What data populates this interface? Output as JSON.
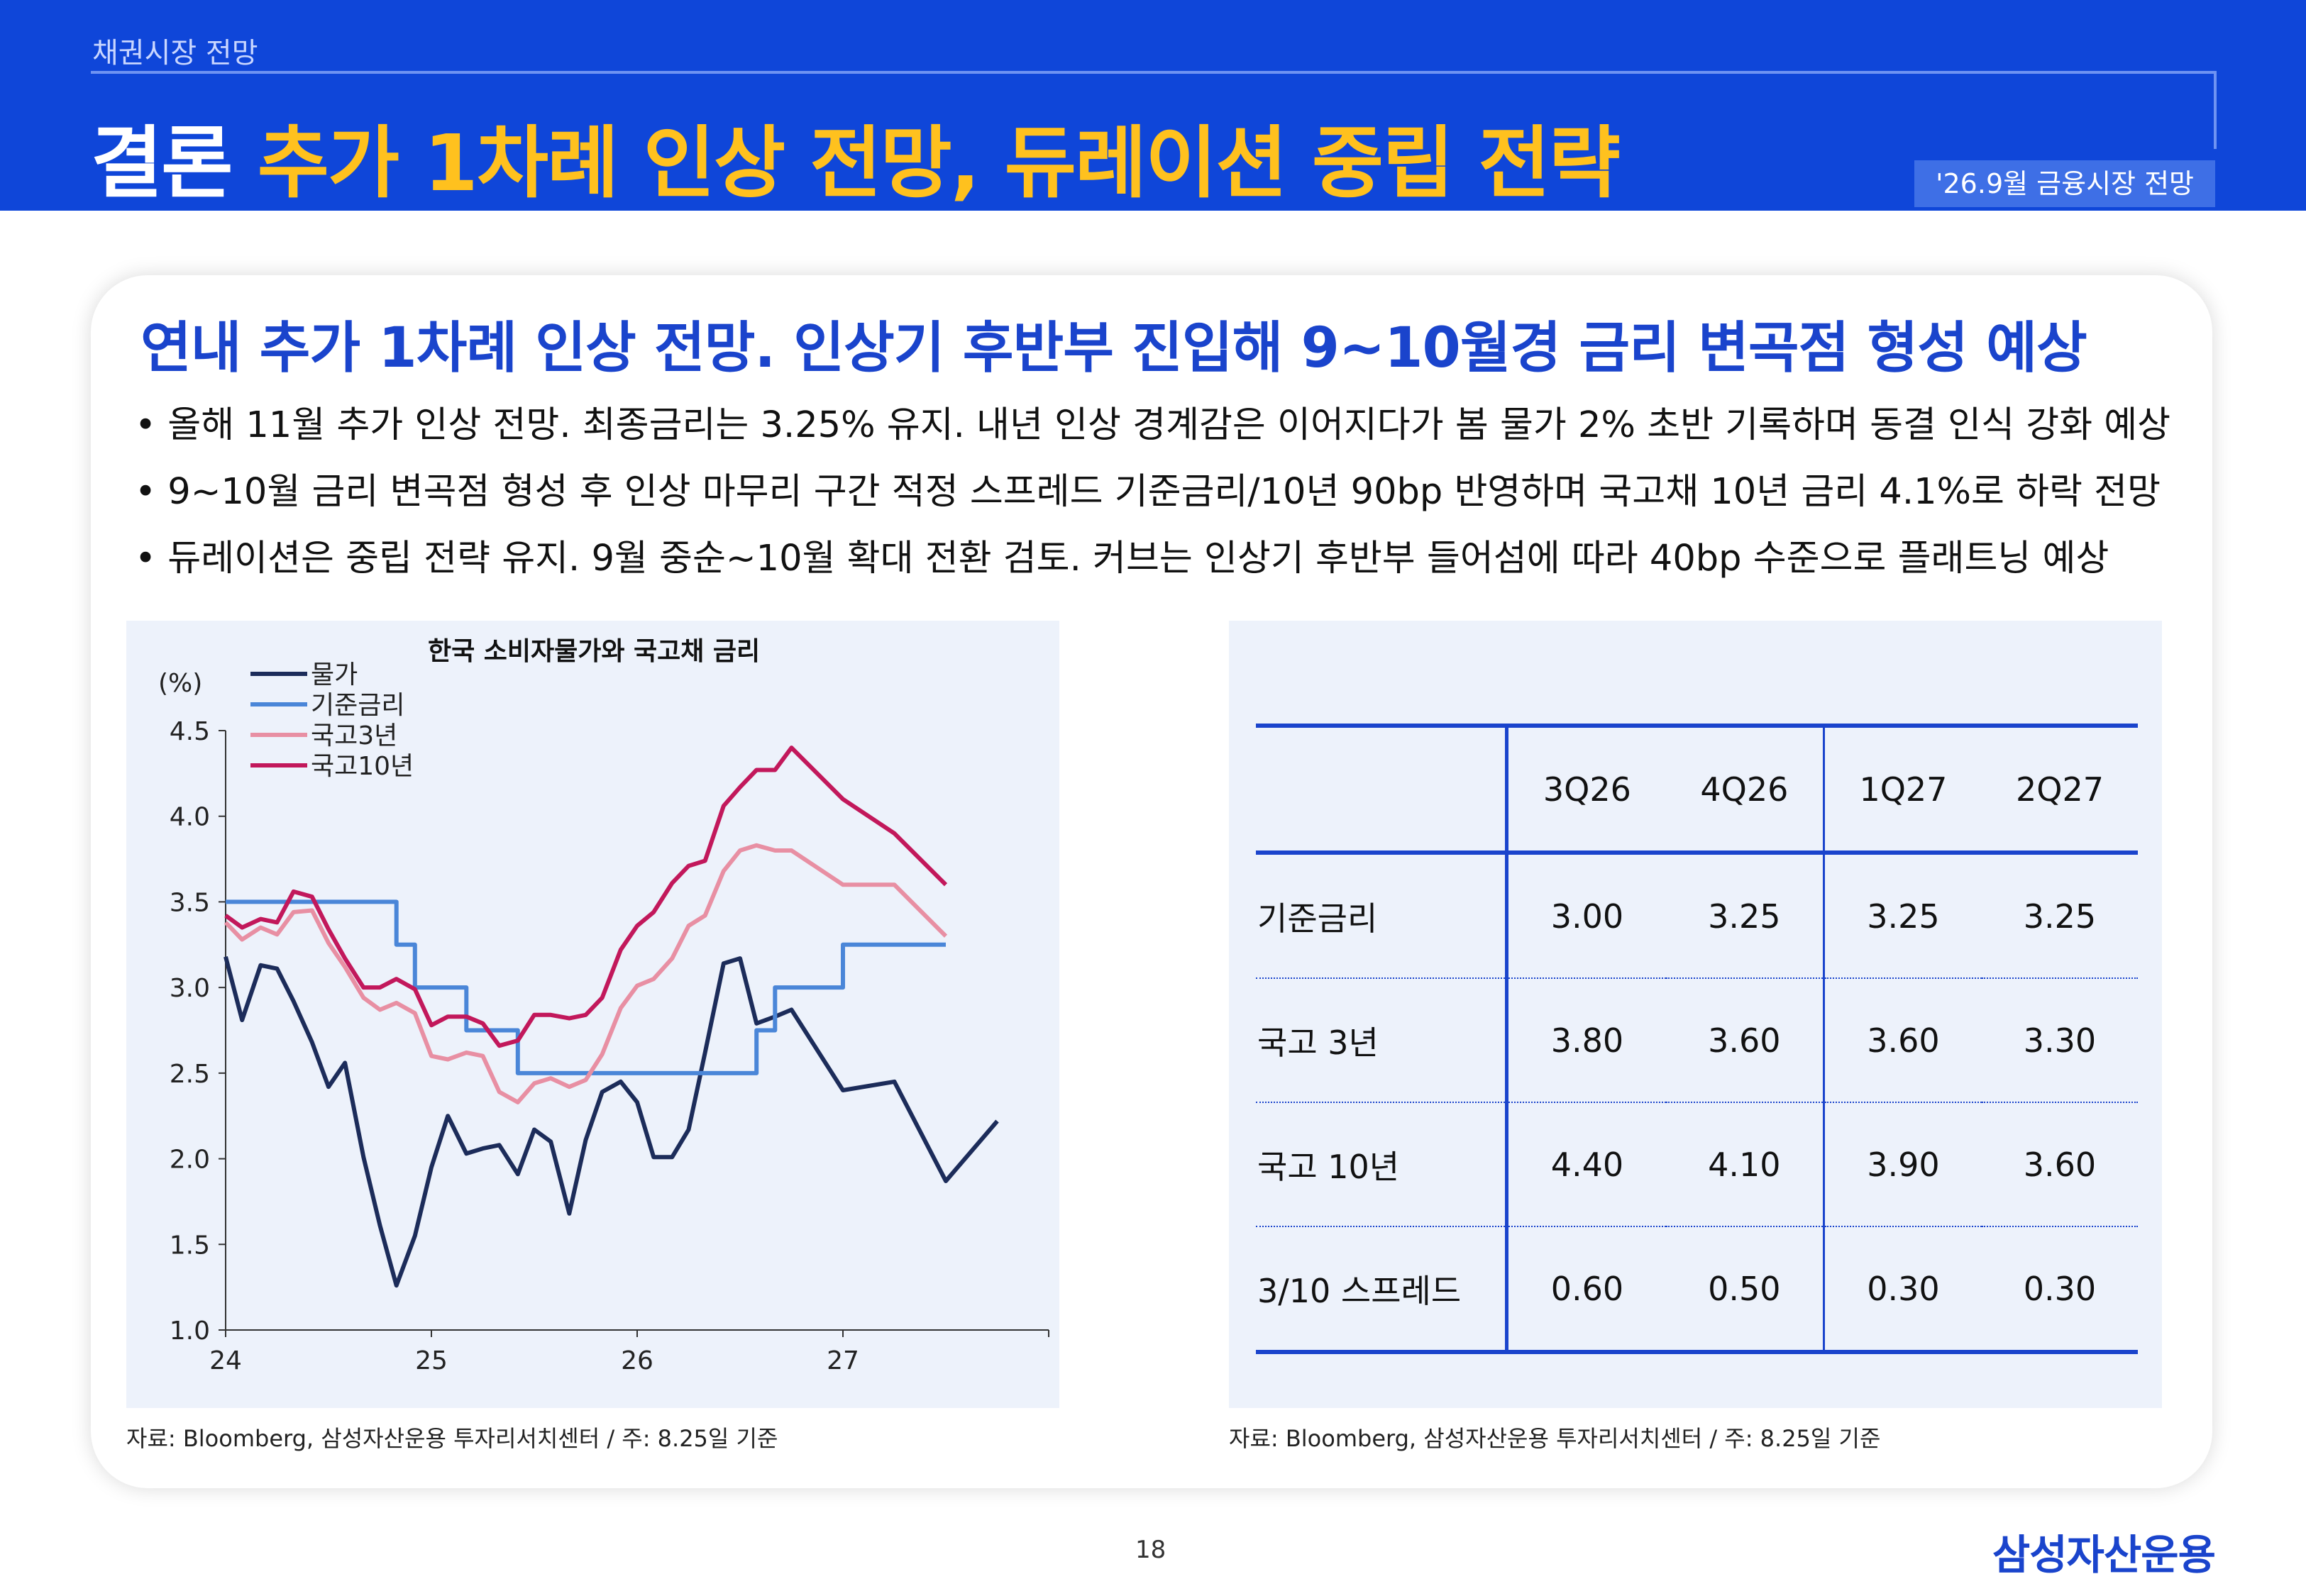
{
  "header": {
    "section": "채권시장 전망",
    "title_white": "결론",
    "title_yellow": "추가 1차례 인상 전망, 듀레이션 중립 전략",
    "date_tag": "'26.9월 금융시장 전망"
  },
  "headline": "연내 추가 1차례 인상 전망. 인상기 후반부 진입해 9~10월경 금리 변곡점 형성 예상",
  "bullets": [
    "올해 11월 추가 인상 전망. 최종금리는 3.25% 유지. 내년 인상 경계감은 이어지다가 봄 물가 2% 초반 기록하며 동결 인식 강화 예상",
    "9~10월 금리 변곡점 형성 후 인상 마무리 구간 적정 스프레드 기준금리/10년 90bp 반영하며 국고채 10년 금리 4.1%로 하락 전망",
    "듀레이션은 중립 전략 유지. 9월 중순~10월 확대 전환 검토. 커브는 인상기 후반부 들어섬에 따라 40bp 수준으로 플래트닝 예상"
  ],
  "chart_data": {
    "type": "line",
    "title": "한국 소비자물가와 국고채 금리",
    "ylabel": "(%)",
    "xlabel": "",
    "ylim": [
      1.0,
      4.5
    ],
    "yticks": [
      "1.0",
      "1.5",
      "2.0",
      "2.5",
      "3.0",
      "3.5",
      "4.0",
      "4.5"
    ],
    "xlim": [
      24,
      28
    ],
    "xticks": [
      "24",
      "25",
      "26",
      "27"
    ],
    "legend_position": "top-left",
    "series": [
      {
        "name": "물가",
        "color": "#1c2c5a",
        "x": [
          24.0,
          24.08,
          24.17,
          24.25,
          24.33,
          24.42,
          24.5,
          24.58,
          24.67,
          24.75,
          24.83,
          24.92,
          25.0,
          25.08,
          25.17,
          25.25,
          25.33,
          25.42,
          25.5,
          25.58,
          25.67,
          25.75,
          25.83,
          25.92,
          26.0,
          26.08,
          26.17,
          26.25,
          26.33,
          26.42,
          26.5,
          26.58,
          26.67,
          26.75,
          27.0,
          27.25,
          27.5,
          27.75
        ],
        "values": [
          3.18,
          2.81,
          3.13,
          3.11,
          2.92,
          2.68,
          2.42,
          2.56,
          2.01,
          1.61,
          1.26,
          1.55,
          1.95,
          2.25,
          2.03,
          2.06,
          2.08,
          1.91,
          2.17,
          2.1,
          1.68,
          2.11,
          2.39,
          2.45,
          2.33,
          2.01,
          2.01,
          2.17,
          2.62,
          3.14,
          3.17,
          2.79,
          2.83,
          2.87,
          2.4,
          2.45,
          1.87,
          2.22
        ]
      },
      {
        "name": "기준금리",
        "color": "#4a86d8",
        "x": [
          24.0,
          24.83,
          24.83,
          24.92,
          24.92,
          25.17,
          25.17,
          25.42,
          25.42,
          26.58,
          26.58,
          26.67,
          26.67,
          27.0,
          27.0,
          27.5
        ],
        "values": [
          3.5,
          3.5,
          3.25,
          3.25,
          3.0,
          3.0,
          2.75,
          2.75,
          2.5,
          2.5,
          2.75,
          2.75,
          3.0,
          3.0,
          3.25,
          3.25
        ]
      },
      {
        "name": "국고3년",
        "color": "#e88fa3",
        "x": [
          24.0,
          24.08,
          24.17,
          24.25,
          24.33,
          24.42,
          24.5,
          24.58,
          24.67,
          24.75,
          24.83,
          24.92,
          25.0,
          25.08,
          25.17,
          25.25,
          25.33,
          25.42,
          25.5,
          25.58,
          25.67,
          25.75,
          25.83,
          25.92,
          26.0,
          26.08,
          26.17,
          26.25,
          26.33,
          26.42,
          26.5,
          26.58,
          26.67,
          26.75,
          27.0,
          27.25,
          27.5
        ],
        "values": [
          3.38,
          3.28,
          3.35,
          3.31,
          3.44,
          3.45,
          3.26,
          3.12,
          2.94,
          2.87,
          2.91,
          2.85,
          2.6,
          2.58,
          2.62,
          2.6,
          2.39,
          2.33,
          2.44,
          2.47,
          2.42,
          2.46,
          2.61,
          2.88,
          3.01,
          3.05,
          3.17,
          3.36,
          3.42,
          3.68,
          3.8,
          3.83,
          3.8,
          3.8,
          3.6,
          3.6,
          3.3
        ]
      },
      {
        "name": "국고10년",
        "color": "#c2185b",
        "x": [
          24.0,
          24.08,
          24.17,
          24.25,
          24.33,
          24.42,
          24.5,
          24.58,
          24.67,
          24.75,
          24.83,
          24.92,
          25.0,
          25.08,
          25.17,
          25.25,
          25.33,
          25.42,
          25.5,
          25.58,
          25.67,
          25.75,
          25.83,
          25.92,
          26.0,
          26.08,
          26.17,
          26.25,
          26.33,
          26.42,
          26.5,
          26.58,
          26.67,
          26.75,
          27.0,
          27.25,
          27.5
        ],
        "values": [
          3.42,
          3.35,
          3.4,
          3.38,
          3.56,
          3.53,
          3.34,
          3.17,
          3.0,
          3.0,
          3.05,
          2.99,
          2.78,
          2.83,
          2.83,
          2.79,
          2.66,
          2.69,
          2.84,
          2.84,
          2.82,
          2.84,
          2.94,
          3.22,
          3.36,
          3.44,
          3.61,
          3.71,
          3.74,
          4.06,
          4.17,
          4.27,
          4.27,
          4.4,
          4.1,
          3.9,
          3.6
        ]
      }
    ]
  },
  "table": {
    "headers": [
      "",
      "3Q26",
      "4Q26",
      "1Q27",
      "2Q27"
    ],
    "rows": [
      [
        "기준금리",
        "3.00",
        "3.25",
        "3.25",
        "3.25"
      ],
      [
        "국고 3년",
        "3.80",
        "3.60",
        "3.60",
        "3.30"
      ],
      [
        "국고 10년",
        "4.40",
        "4.10",
        "3.90",
        "3.60"
      ],
      [
        "3/10 스프레드",
        "0.60",
        "0.50",
        "0.30",
        "0.30"
      ]
    ]
  },
  "sources": {
    "left": "자료: Bloomberg, 삼성자산운용 투자리서치센터 / 주: 8.25일 기준",
    "right": "자료: Bloomberg, 삼성자산운용 투자리서치센터 / 주: 8.25일 기준"
  },
  "footer": {
    "page": "18",
    "logo": "삼성자산운용"
  }
}
